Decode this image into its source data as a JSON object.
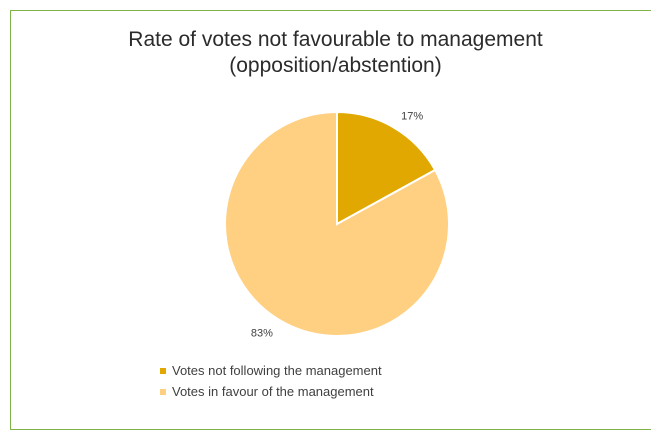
{
  "chart_data": {
    "type": "pie",
    "title_lines": [
      "Rate of votes not favourable to management",
      "(opposition/abstention)"
    ],
    "slices": [
      {
        "label": "Votes not following the management",
        "value": 17,
        "value_label": "17%",
        "color": "#e0a800"
      },
      {
        "label": "Votes in favour of the management",
        "value": 83,
        "value_label": "83%",
        "color": "#ffd082"
      }
    ],
    "legend_position": "bottom",
    "start_angle": "12 o'clock, clockwise"
  }
}
